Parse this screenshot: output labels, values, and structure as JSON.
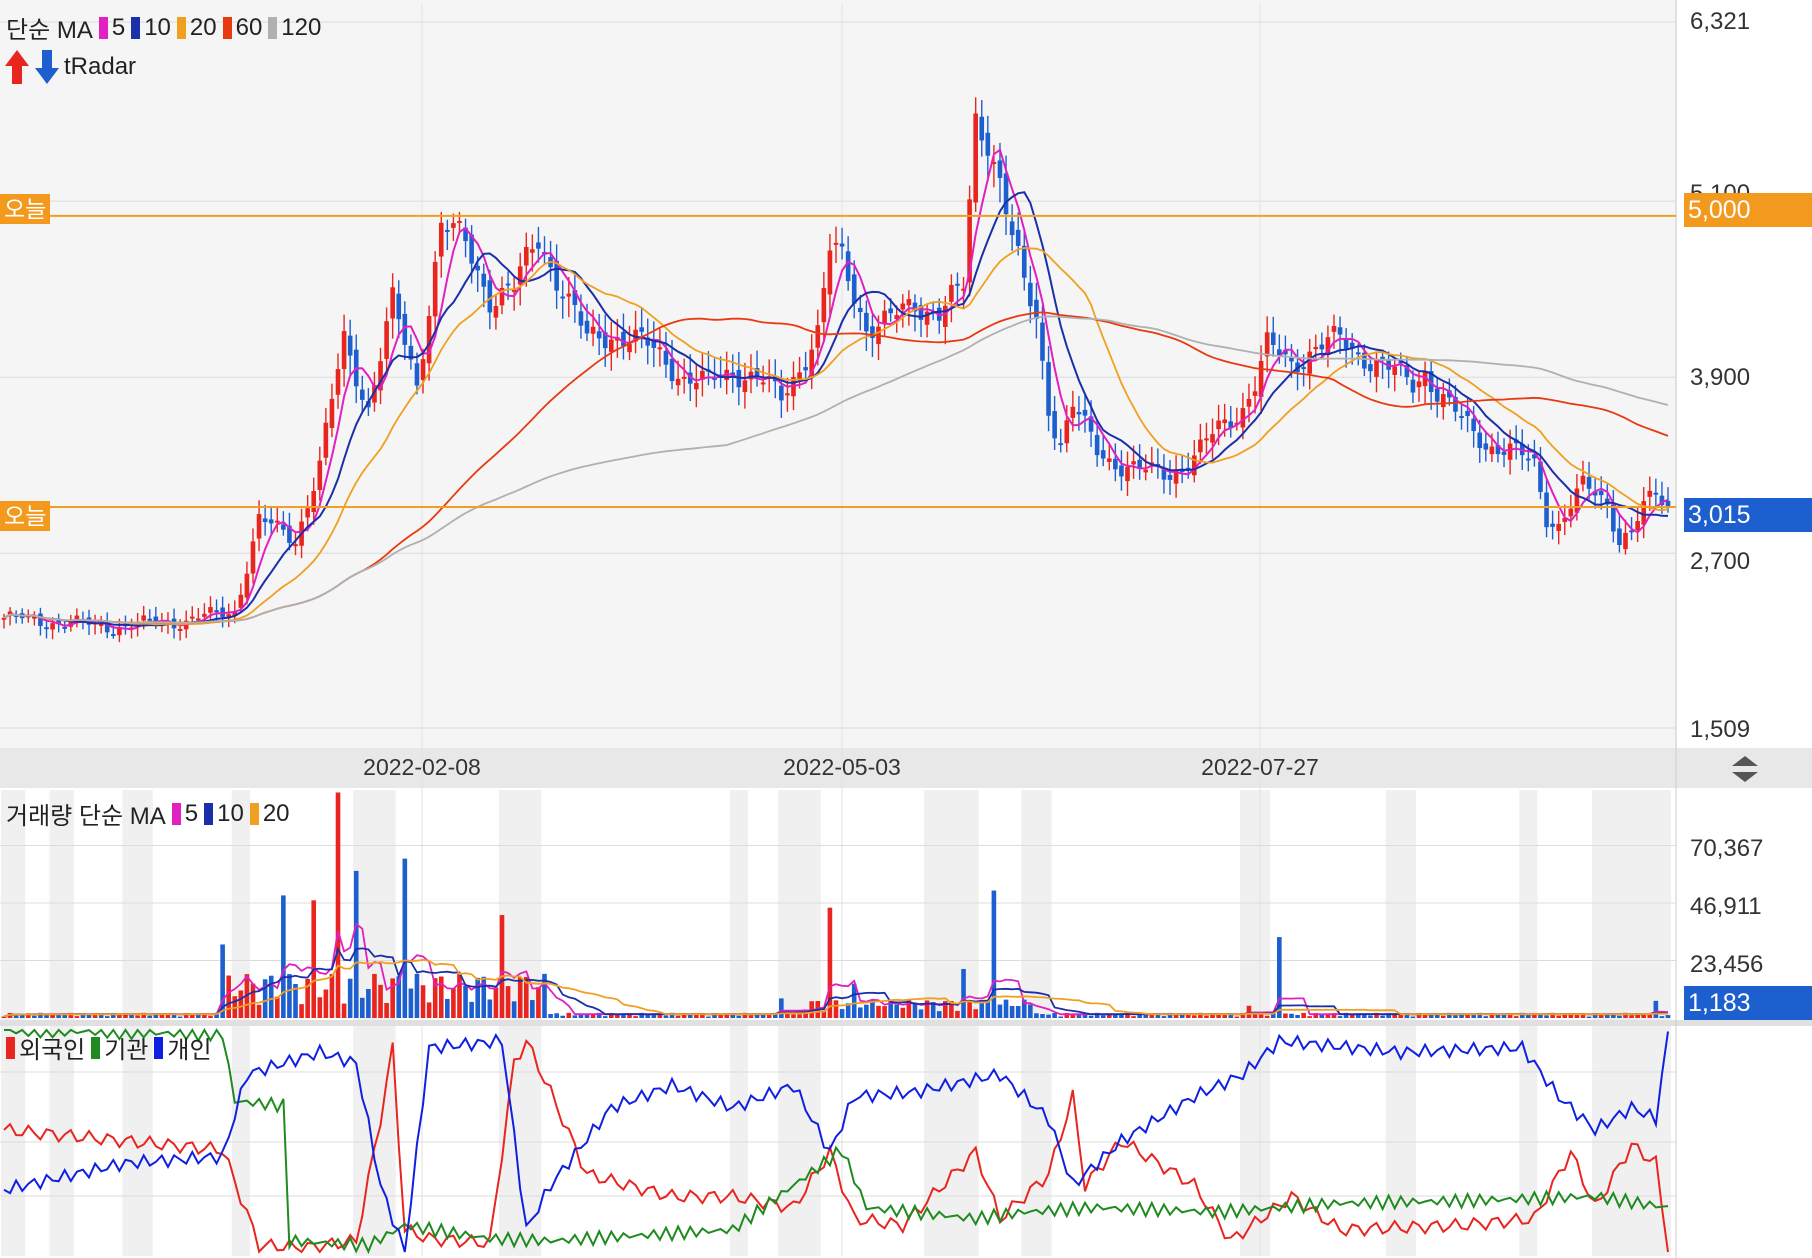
{
  "price_panel": {
    "legend_title": "단순 MA",
    "ma_items": [
      {
        "label": "5",
        "color": "#e020c0"
      },
      {
        "label": "10",
        "color": "#1a2fa8"
      },
      {
        "label": "20",
        "color": "#f0a020"
      },
      {
        "label": "60",
        "color": "#e83a10"
      },
      {
        "label": "120",
        "color": "#b0b0b0"
      }
    ],
    "radar_label": "tRadar",
    "today_marker_label": "오늘",
    "y_ticks": [
      "6,321",
      "5,100",
      "3,900",
      "2,700",
      "1,509"
    ],
    "current_price_tag": "3,015",
    "level_price_tag": "5,000",
    "up_color": "#e8251f",
    "down_color": "#1e5fd0"
  },
  "x_axis": {
    "dates": [
      "2022-02-08",
      "2022-05-03",
      "2022-07-27"
    ]
  },
  "volume_panel": {
    "legend_title": "거래량 단순 MA",
    "ma_items": [
      {
        "label": "5",
        "color": "#e020c0"
      },
      {
        "label": "10",
        "color": "#1a2fa8"
      },
      {
        "label": "20",
        "color": "#f0a020"
      }
    ],
    "y_ticks": [
      "70,367",
      "46,911",
      "23,456"
    ],
    "current_volume_tag": "1,183"
  },
  "investor_panel": {
    "legend": [
      {
        "label": "외국인",
        "color": "#e8251f"
      },
      {
        "label": "기관",
        "color": "#1f8a1f"
      },
      {
        "label": "개인",
        "color": "#1020e0"
      }
    ]
  },
  "chart_data": [
    {
      "type": "candlestick",
      "ylim": [
        1509,
        6321
      ],
      "y_ticks": [
        6321,
        5100,
        3900,
        2700,
        1509
      ],
      "horizontal_levels": [
        5000,
        3015
      ],
      "anchor_points_close": [
        {
          "i": 0,
          "v": 2260
        },
        {
          "i": 18,
          "v": 2200
        },
        {
          "i": 30,
          "v": 2240
        },
        {
          "i": 38,
          "v": 2310
        },
        {
          "i": 42,
          "v": 2920
        },
        {
          "i": 48,
          "v": 2800
        },
        {
          "i": 52,
          "v": 3300
        },
        {
          "i": 56,
          "v": 4150
        },
        {
          "i": 60,
          "v": 3700
        },
        {
          "i": 64,
          "v": 4400
        },
        {
          "i": 68,
          "v": 3850
        },
        {
          "i": 72,
          "v": 4950
        },
        {
          "i": 76,
          "v": 4800
        },
        {
          "i": 80,
          "v": 4450
        },
        {
          "i": 84,
          "v": 4500
        },
        {
          "i": 88,
          "v": 4850
        },
        {
          "i": 92,
          "v": 4500
        },
        {
          "i": 96,
          "v": 4150
        },
        {
          "i": 100,
          "v": 4200
        },
        {
          "i": 104,
          "v": 4150
        },
        {
          "i": 108,
          "v": 4050
        },
        {
          "i": 112,
          "v": 3900
        },
        {
          "i": 116,
          "v": 3850
        },
        {
          "i": 120,
          "v": 3950
        },
        {
          "i": 124,
          "v": 3900
        },
        {
          "i": 128,
          "v": 3750
        },
        {
          "i": 132,
          "v": 4050
        },
        {
          "i": 134,
          "v": 4200
        },
        {
          "i": 136,
          "v": 4750
        },
        {
          "i": 138,
          "v": 4700
        },
        {
          "i": 142,
          "v": 4250
        },
        {
          "i": 146,
          "v": 4280
        },
        {
          "i": 150,
          "v": 4400
        },
        {
          "i": 154,
          "v": 4350
        },
        {
          "i": 158,
          "v": 4500
        },
        {
          "i": 160,
          "v": 5650
        },
        {
          "i": 162,
          "v": 5550
        },
        {
          "i": 164,
          "v": 5250
        },
        {
          "i": 166,
          "v": 4850
        },
        {
          "i": 168,
          "v": 4500
        },
        {
          "i": 170,
          "v": 4300
        },
        {
          "i": 172,
          "v": 3700
        },
        {
          "i": 174,
          "v": 3450
        },
        {
          "i": 176,
          "v": 3700
        },
        {
          "i": 180,
          "v": 3400
        },
        {
          "i": 184,
          "v": 3300
        },
        {
          "i": 188,
          "v": 3250
        },
        {
          "i": 192,
          "v": 3250
        },
        {
          "i": 196,
          "v": 3350
        },
        {
          "i": 200,
          "v": 3550
        },
        {
          "i": 204,
          "v": 3700
        },
        {
          "i": 206,
          "v": 3850
        },
        {
          "i": 208,
          "v": 4100
        },
        {
          "i": 212,
          "v": 4000
        },
        {
          "i": 216,
          "v": 4100
        },
        {
          "i": 220,
          "v": 4150
        },
        {
          "i": 224,
          "v": 4050
        },
        {
          "i": 228,
          "v": 3950
        },
        {
          "i": 232,
          "v": 3850
        },
        {
          "i": 234,
          "v": 3950
        },
        {
          "i": 236,
          "v": 3800
        },
        {
          "i": 240,
          "v": 3600
        },
        {
          "i": 244,
          "v": 3450
        },
        {
          "i": 248,
          "v": 3400
        },
        {
          "i": 252,
          "v": 3300
        },
        {
          "i": 254,
          "v": 2950
        },
        {
          "i": 256,
          "v": 2900
        },
        {
          "i": 260,
          "v": 3150
        },
        {
          "i": 264,
          "v": 3050
        },
        {
          "i": 266,
          "v": 2800
        },
        {
          "i": 268,
          "v": 2850
        },
        {
          "i": 270,
          "v": 3000
        },
        {
          "i": 272,
          "v": 3100
        },
        {
          "i": 274,
          "v": 3015
        }
      ],
      "ma_periods": [
        5,
        10,
        20,
        60,
        120
      ]
    },
    {
      "type": "bar",
      "ylim": [
        0,
        93000
      ],
      "y_ticks": [
        70367,
        46911,
        23456
      ],
      "current_value": 1183,
      "spikes": [
        {
          "i": 36,
          "v": 30000
        },
        {
          "i": 46,
          "v": 50000
        },
        {
          "i": 51,
          "v": 48000
        },
        {
          "i": 55,
          "v": 92000
        },
        {
          "i": 58,
          "v": 60000
        },
        {
          "i": 66,
          "v": 65000
        },
        {
          "i": 82,
          "v": 42000
        },
        {
          "i": 128,
          "v": 8000
        },
        {
          "i": 136,
          "v": 45000
        },
        {
          "i": 140,
          "v": 14000
        },
        {
          "i": 158,
          "v": 20000
        },
        {
          "i": 163,
          "v": 52000
        },
        {
          "i": 205,
          "v": 5000
        },
        {
          "i": 210,
          "v": 33000
        },
        {
          "i": 272,
          "v": 7000
        }
      ]
    },
    {
      "type": "line",
      "series": [
        {
          "name": "외국인",
          "points": [
            {
              "i": 0,
              "v": 0.55
            },
            {
              "i": 20,
              "v": 0.5
            },
            {
              "i": 36,
              "v": 0.46
            },
            {
              "i": 42,
              "v": 0.03
            },
            {
              "i": 50,
              "v": 0.02
            },
            {
              "i": 58,
              "v": 0.05
            },
            {
              "i": 62,
              "v": 0.6
            },
            {
              "i": 64,
              "v": 0.92
            },
            {
              "i": 66,
              "v": 0.1
            },
            {
              "i": 70,
              "v": 0.06
            },
            {
              "i": 80,
              "v": 0.04
            },
            {
              "i": 84,
              "v": 0.85
            },
            {
              "i": 86,
              "v": 0.95
            },
            {
              "i": 90,
              "v": 0.72
            },
            {
              "i": 96,
              "v": 0.35
            },
            {
              "i": 100,
              "v": 0.32
            },
            {
              "i": 110,
              "v": 0.25
            },
            {
              "i": 120,
              "v": 0.25
            },
            {
              "i": 130,
              "v": 0.2
            },
            {
              "i": 136,
              "v": 0.45
            },
            {
              "i": 140,
              "v": 0.15
            },
            {
              "i": 148,
              "v": 0.12
            },
            {
              "i": 160,
              "v": 0.45
            },
            {
              "i": 164,
              "v": 0.15
            },
            {
              "i": 172,
              "v": 0.35
            },
            {
              "i": 176,
              "v": 0.7
            },
            {
              "i": 178,
              "v": 0.3
            },
            {
              "i": 184,
              "v": 0.5
            },
            {
              "i": 196,
              "v": 0.3
            },
            {
              "i": 202,
              "v": 0.05
            },
            {
              "i": 212,
              "v": 0.25
            },
            {
              "i": 220,
              "v": 0.1
            },
            {
              "i": 240,
              "v": 0.12
            },
            {
              "i": 252,
              "v": 0.15
            },
            {
              "i": 258,
              "v": 0.45
            },
            {
              "i": 262,
              "v": 0.2
            },
            {
              "i": 268,
              "v": 0.48
            },
            {
              "i": 272,
              "v": 0.4
            },
            {
              "i": 274,
              "v": 0.02
            }
          ]
        },
        {
          "name": "기관",
          "points": [
            {
              "i": 0,
              "v": 1.0
            },
            {
              "i": 36,
              "v": 0.98
            },
            {
              "i": 38,
              "v": 0.68
            },
            {
              "i": 46,
              "v": 0.66
            },
            {
              "i": 47,
              "v": 0.05
            },
            {
              "i": 60,
              "v": 0.03
            },
            {
              "i": 66,
              "v": 0.12
            },
            {
              "i": 80,
              "v": 0.06
            },
            {
              "i": 90,
              "v": 0.05
            },
            {
              "i": 120,
              "v": 0.1
            },
            {
              "i": 130,
              "v": 0.3
            },
            {
              "i": 138,
              "v": 0.46
            },
            {
              "i": 142,
              "v": 0.2
            },
            {
              "i": 160,
              "v": 0.15
            },
            {
              "i": 168,
              "v": 0.18
            },
            {
              "i": 180,
              "v": 0.2
            },
            {
              "i": 200,
              "v": 0.18
            },
            {
              "i": 220,
              "v": 0.22
            },
            {
              "i": 240,
              "v": 0.23
            },
            {
              "i": 262,
              "v": 0.25
            },
            {
              "i": 274,
              "v": 0.2
            }
          ]
        },
        {
          "name": "개인",
          "points": [
            {
              "i": 0,
              "v": 0.28
            },
            {
              "i": 20,
              "v": 0.4
            },
            {
              "i": 36,
              "v": 0.43
            },
            {
              "i": 40,
              "v": 0.8
            },
            {
              "i": 46,
              "v": 0.85
            },
            {
              "i": 52,
              "v": 0.9
            },
            {
              "i": 58,
              "v": 0.85
            },
            {
              "i": 62,
              "v": 0.3
            },
            {
              "i": 66,
              "v": 0.0
            },
            {
              "i": 70,
              "v": 0.92
            },
            {
              "i": 82,
              "v": 0.95
            },
            {
              "i": 86,
              "v": 0.1
            },
            {
              "i": 90,
              "v": 0.3
            },
            {
              "i": 100,
              "v": 0.65
            },
            {
              "i": 110,
              "v": 0.75
            },
            {
              "i": 120,
              "v": 0.65
            },
            {
              "i": 130,
              "v": 0.75
            },
            {
              "i": 136,
              "v": 0.45
            },
            {
              "i": 140,
              "v": 0.7
            },
            {
              "i": 150,
              "v": 0.72
            },
            {
              "i": 164,
              "v": 0.8
            },
            {
              "i": 172,
              "v": 0.6
            },
            {
              "i": 176,
              "v": 0.3
            },
            {
              "i": 184,
              "v": 0.5
            },
            {
              "i": 196,
              "v": 0.7
            },
            {
              "i": 204,
              "v": 0.8
            },
            {
              "i": 210,
              "v": 0.95
            },
            {
              "i": 230,
              "v": 0.9
            },
            {
              "i": 250,
              "v": 0.92
            },
            {
              "i": 256,
              "v": 0.7
            },
            {
              "i": 262,
              "v": 0.55
            },
            {
              "i": 268,
              "v": 0.65
            },
            {
              "i": 272,
              "v": 0.6
            },
            {
              "i": 274,
              "v": 0.98
            }
          ]
        }
      ]
    }
  ]
}
